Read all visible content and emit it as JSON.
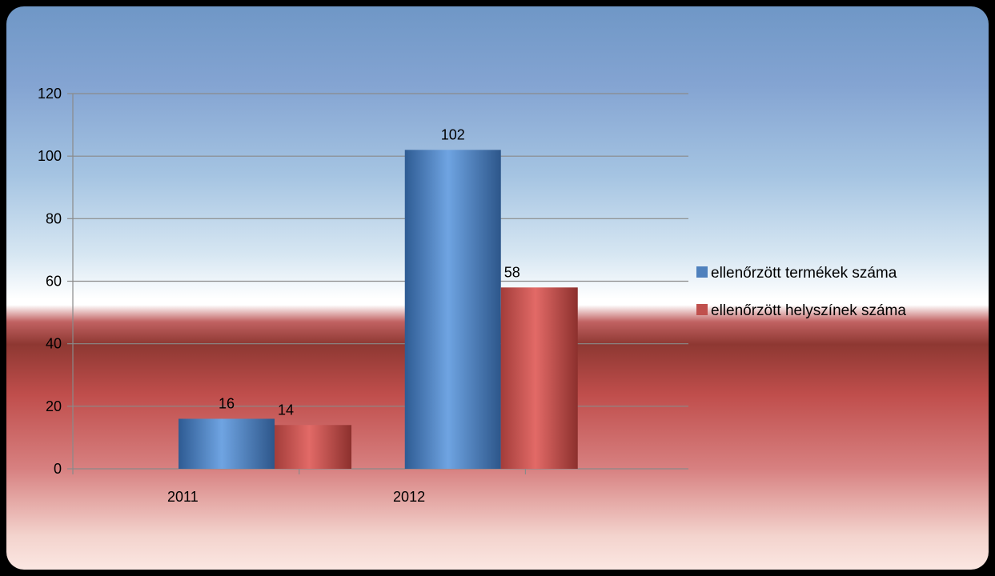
{
  "chart_data": {
    "type": "bar",
    "categories": [
      "2011",
      "2012"
    ],
    "series": [
      {
        "name": "ellenőrzött termékek száma",
        "values": [
          16,
          102
        ],
        "color": "#4f81bd"
      },
      {
        "name": "ellenőrzött helyszínek száma",
        "values": [
          14,
          58
        ],
        "color": "#c0504d"
      }
    ],
    "ylim": [
      0,
      120
    ],
    "yticks": [
      0,
      20,
      40,
      60,
      80,
      100,
      120
    ],
    "grid": true,
    "legend_position": "right",
    "data_labels": true
  }
}
